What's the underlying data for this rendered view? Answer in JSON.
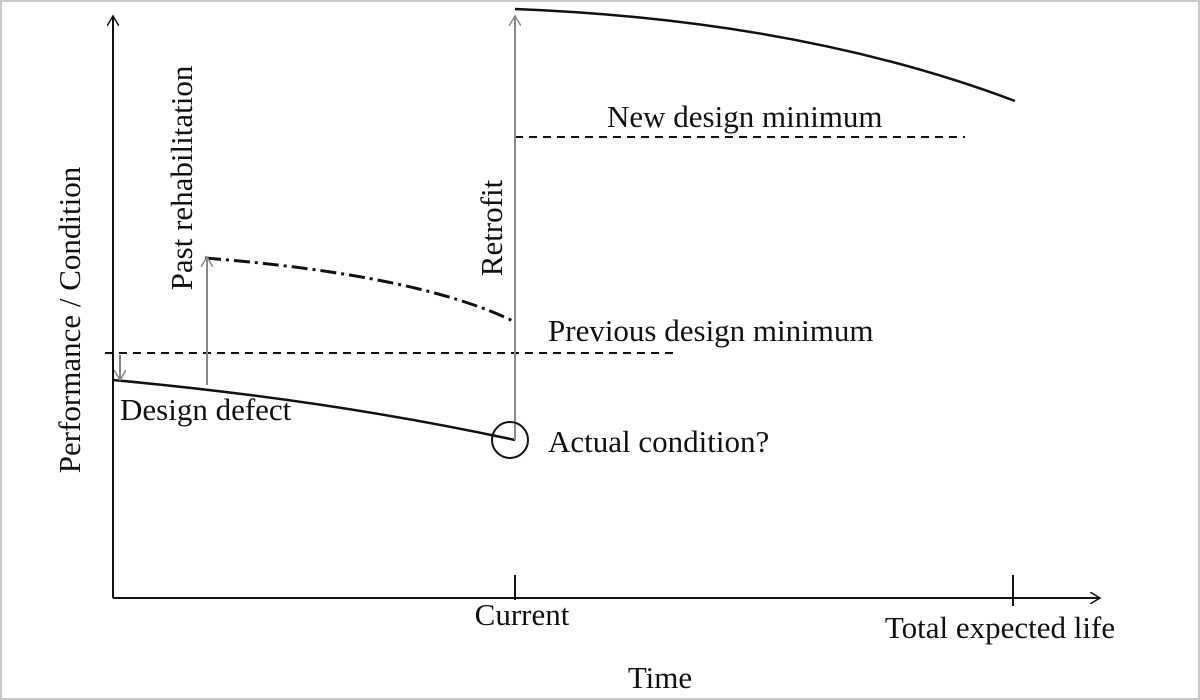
{
  "axes": {
    "y_label": "Performance / Condition",
    "x_label": "Time",
    "x_ticks": [
      "Current",
      "Total expected life"
    ]
  },
  "annotations": {
    "new_design_minimum": "New design minimum",
    "previous_design_minimum": "Previous design minimum",
    "design_defect": "Design defect",
    "actual_condition": "Actual condition?",
    "past_rehabilitation": "Past rehabilitation",
    "retrofit": "Retrofit"
  }
}
